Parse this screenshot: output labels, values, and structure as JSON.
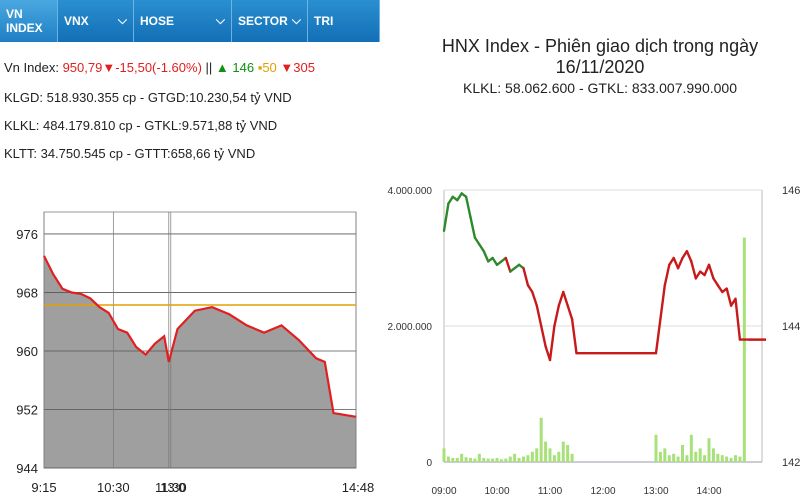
{
  "tabs": [
    {
      "label": "VN INDEX",
      "dropdown": false
    },
    {
      "label": "VNX",
      "dropdown": true
    },
    {
      "label": "HOSE",
      "dropdown": true
    },
    {
      "label": "SECTOR",
      "dropdown": true
    },
    {
      "label": "TRI",
      "dropdown": false
    }
  ],
  "summary": {
    "label": "Vn Index:",
    "value": "950,79",
    "change": "▼-15,50(-1.60%)",
    "separator": "||",
    "up": "▲ 146",
    "flat": "▪50",
    "down": "▼305"
  },
  "info_lines": [
    "KLGD: 518.930.355 cp - GTGD:10.230,54 tỷ VND",
    "KLKL: 484.179.810 cp - GTKL:9.571,88 tỷ VND",
    "KLTT: 34.750.545 cp - GTTT:658,66 tỷ VND"
  ],
  "colors": {
    "tab_blue": "#1a7cc2",
    "down_red": "#e02020",
    "up_green": "#109010",
    "reference": "#e0a000",
    "area_fill": "#9a9a9a",
    "hnx_red": "#c81a1a",
    "hnx_green": "#2c8a2c",
    "volume": "#a8e07a"
  },
  "chart_data": [
    {
      "type": "area",
      "title": "",
      "y_ticks": [
        "976",
        "968",
        "960",
        "952",
        "944"
      ],
      "ylim": [
        944,
        979
      ],
      "x_ticks": [
        "9:15",
        "10:30",
        "11:30",
        "13:0",
        "14:48"
      ],
      "reference": 966.29,
      "grid": true,
      "series": [
        {
          "x": [
            "9:15",
            "9:25",
            "9:35",
            "9:45",
            "9:55",
            "10:05",
            "10:15",
            "10:25",
            "10:35",
            "10:45",
            "10:55",
            "11:05",
            "11:15",
            "11:25",
            "11:30",
            "13:00",
            "13:05",
            "13:15",
            "13:25",
            "13:35",
            "13:45",
            "13:55",
            "14:05",
            "14:15",
            "14:25",
            "14:30",
            "14:35",
            "14:48"
          ],
          "values": [
            973,
            970.5,
            968.5,
            968,
            967.8,
            967.2,
            966,
            965.2,
            963,
            962.5,
            960.5,
            959.5,
            961,
            962,
            958.5,
            958.5,
            963,
            965.5,
            966,
            965,
            963.5,
            962.5,
            963.5,
            961.5,
            959,
            958.5,
            951.5,
            951
          ]
        }
      ]
    },
    {
      "type": "line",
      "title": "HNX Index - Phiên giao dịch trong ngày 16/11/2020",
      "subtitle": "KLKL: 58.062.600 - GTKL: 833.007.990.000",
      "y_left_ticks": [
        "4.000.000",
        "2.000.000",
        "0"
      ],
      "y_left_range": [
        0,
        4000000
      ],
      "y_right_ticks": [
        "146",
        "144",
        "142"
      ],
      "y_right_range": [
        142,
        146
      ],
      "reference": 143.8,
      "x_ticks": [
        "09:00",
        "10:00",
        "11:00",
        "12:00",
        "13:00",
        "14:00"
      ],
      "grid": true,
      "series": [
        {
          "name": "",
          "x": [
            "09:00",
            "09:05",
            "09:10",
            "09:15",
            "09:20",
            "09:25",
            "09:30",
            "09:35",
            "09:40",
            "09:45",
            "09:50",
            "09:55",
            "10:00",
            "10:05",
            "10:10",
            "10:15",
            "10:20",
            "10:25",
            "10:30",
            "10:35",
            "10:40",
            "10:45",
            "10:50",
            "10:55",
            "11:00",
            "11:05",
            "11:10",
            "11:15",
            "11:20",
            "11:25",
            "11:30",
            "13:00",
            "13:05",
            "13:10",
            "13:15",
            "13:20",
            "13:25",
            "13:30",
            "13:35",
            "13:40",
            "13:45",
            "13:50",
            "13:55",
            "14:00",
            "14:05",
            "14:10",
            "14:15",
            "14:20",
            "14:25",
            "14:30",
            "14:35",
            "14:45"
          ],
          "values": [
            145.4,
            145.8,
            145.9,
            145.85,
            145.95,
            145.9,
            145.6,
            145.3,
            145.2,
            145.1,
            144.95,
            145.0,
            144.9,
            144.95,
            145.0,
            144.8,
            144.85,
            144.9,
            144.85,
            144.6,
            144.5,
            144.3,
            144.0,
            143.7,
            143.5,
            144.0,
            144.3,
            144.5,
            144.3,
            144.1,
            143.6,
            143.6,
            144.1,
            144.6,
            144.9,
            145.0,
            144.85,
            145.0,
            145.1,
            144.95,
            144.7,
            144.8,
            144.75,
            144.9,
            144.7,
            144.6,
            144.5,
            144.55,
            144.3,
            144.4,
            143.8,
            143.8
          ]
        }
      ],
      "volume": {
        "x": [
          "09:00",
          "09:05",
          "09:10",
          "09:15",
          "09:20",
          "09:25",
          "09:30",
          "09:35",
          "09:40",
          "09:45",
          "09:50",
          "09:55",
          "10:00",
          "10:05",
          "10:10",
          "10:15",
          "10:20",
          "10:25",
          "10:30",
          "10:35",
          "10:40",
          "10:45",
          "10:50",
          "10:55",
          "11:00",
          "11:05",
          "11:10",
          "11:15",
          "11:20",
          "11:25",
          "13:00",
          "13:05",
          "13:10",
          "13:15",
          "13:20",
          "13:25",
          "13:30",
          "13:35",
          "13:40",
          "13:45",
          "13:50",
          "13:55",
          "14:00",
          "14:05",
          "14:10",
          "14:15",
          "14:20",
          "14:25",
          "14:30",
          "14:35",
          "14:40"
        ],
        "values": [
          200000,
          80000,
          60000,
          60000,
          120000,
          70000,
          60000,
          50000,
          120000,
          60000,
          50000,
          50000,
          60000,
          40000,
          50000,
          80000,
          120000,
          60000,
          80000,
          100000,
          150000,
          200000,
          650000,
          300000,
          200000,
          100000,
          150000,
          300000,
          250000,
          120000,
          400000,
          150000,
          200000,
          100000,
          120000,
          80000,
          250000,
          100000,
          400000,
          150000,
          200000,
          100000,
          350000,
          200000,
          120000,
          100000,
          80000,
          60000,
          100000,
          80000,
          3300000
        ]
      }
    }
  ]
}
